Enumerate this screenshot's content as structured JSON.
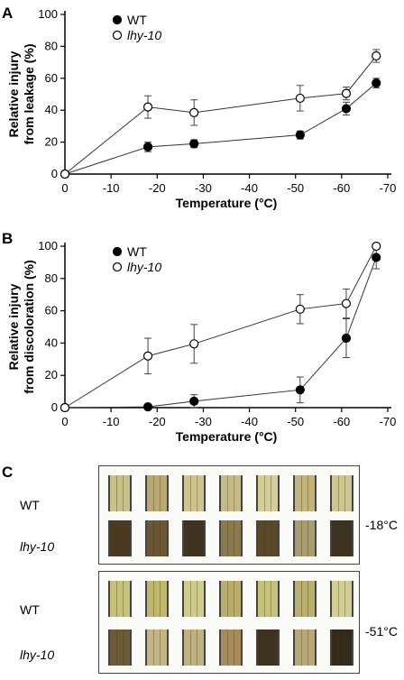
{
  "panels": {
    "a": "A",
    "b": "B",
    "c": "C"
  },
  "chart_data": [
    {
      "type": "line",
      "panel": "A",
      "ylabel": [
        "Relative injury",
        "from leakage (%)"
      ],
      "xlabel": "Temperature (°C)",
      "x_ticks": [
        0,
        -10,
        -20,
        -30,
        -40,
        -50,
        -60,
        -70
      ],
      "y_ticks": [
        0,
        20,
        40,
        60,
        80,
        100
      ],
      "xlim": [
        0,
        -70
      ],
      "ylim": [
        0,
        100
      ],
      "legend_position": "top-left",
      "series": [
        {
          "name": "WT",
          "marker": "filled-circle",
          "x": [
            0,
            -18,
            -28,
            -51,
            -61,
            -67.5
          ],
          "y": [
            0,
            17,
            19,
            24.5,
            41,
            57
          ],
          "err": [
            0,
            3,
            2.5,
            2.5,
            4,
            3
          ]
        },
        {
          "name": "lhy-10",
          "marker": "open-circle",
          "x": [
            0,
            -18,
            -28,
            -51,
            -61,
            -67.5
          ],
          "y": [
            0,
            42,
            38.5,
            47.5,
            50.5,
            74
          ],
          "err": [
            0,
            7,
            8,
            8,
            4,
            4
          ]
        }
      ]
    },
    {
      "type": "line",
      "panel": "B",
      "ylabel": [
        "Relative injury",
        "from discoloration (%)"
      ],
      "xlabel": "Temperature (°C)",
      "x_ticks": [
        0,
        -10,
        -20,
        -30,
        -40,
        -50,
        -60,
        -70
      ],
      "y_ticks": [
        0,
        20,
        40,
        60,
        80,
        100
      ],
      "xlim": [
        0,
        -70
      ],
      "ylim": [
        0,
        100
      ],
      "legend_position": "top-left",
      "series": [
        {
          "name": "WT",
          "marker": "filled-circle",
          "x": [
            0,
            -18,
            -28,
            -51,
            -61,
            -67.5
          ],
          "y": [
            0,
            0.5,
            4,
            11,
            43,
            93
          ],
          "err": [
            0,
            0,
            4,
            8,
            12,
            7
          ]
        },
        {
          "name": "lhy-10",
          "marker": "open-circle",
          "x": [
            0,
            -18,
            -28,
            -51,
            -61,
            -67.5
          ],
          "y": [
            0,
            32,
            39.5,
            61,
            64.5,
            100
          ],
          "err": [
            0,
            11,
            12,
            9,
            9,
            0
          ]
        }
      ]
    }
  ],
  "panel_c": {
    "rows": [
      {
        "label": "WT",
        "italic": false
      },
      {
        "label": "lhy-10",
        "italic": true
      },
      {
        "label": "WT",
        "italic": false
      },
      {
        "label": "lhy-10",
        "italic": true
      }
    ],
    "temperatures": [
      "-18°C",
      "-51°C"
    ],
    "strip_colors": {
      "wt_18": [
        "#c9c08a",
        "#b9a873",
        "#cfc48e",
        "#c5bb86",
        "#d3cd98",
        "#c2b47a",
        "#cdc690"
      ],
      "lhy_18": [
        "#4a3a22",
        "#6b5532",
        "#3e3220",
        "#8a7a4c",
        "#5a4828",
        "#a89d6e",
        "#3c3220"
      ],
      "wt_51": [
        "#c7c27a",
        "#bfb86c",
        "#d0cc8c",
        "#b8ae6a",
        "#c6c27c",
        "#b9b070",
        "#d2ce92"
      ],
      "lhy_51": [
        "#6e5a36",
        "#c3b684",
        "#bfb281",
        "#a88c5c",
        "#3e3220",
        "#b8a878",
        "#322a1a"
      ]
    }
  }
}
